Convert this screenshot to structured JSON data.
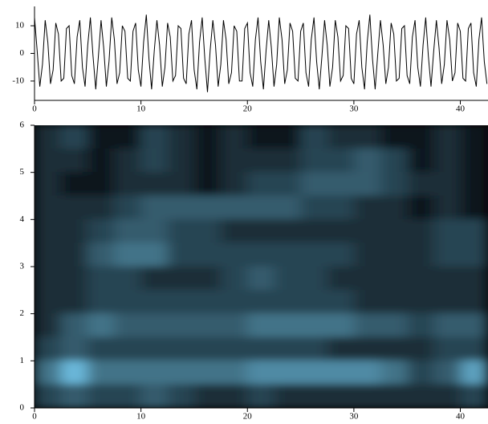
{
  "chart_data": [
    {
      "type": "line",
      "color": "#000000",
      "xlim": [
        0,
        42.6
      ],
      "ylim": [
        -17,
        17
      ],
      "xticks": [
        0,
        10,
        20,
        30,
        40
      ],
      "yticks": [
        10,
        0,
        -10
      ],
      "x": [
        0,
        0.25,
        0.5,
        0.75,
        1,
        1.25,
        1.5,
        1.75,
        2,
        2.25,
        2.5,
        2.75,
        3,
        3.25,
        3.5,
        3.75,
        4,
        4.25,
        4.5,
        4.75,
        5,
        5.25,
        5.5,
        5.75,
        6,
        6.25,
        6.5,
        6.75,
        7,
        7.25,
        7.5,
        7.75,
        8,
        8.25,
        8.5,
        8.75,
        9,
        9.25,
        9.5,
        9.75,
        10,
        10.25,
        10.5,
        10.75,
        11,
        11.25,
        11.5,
        11.75,
        12,
        12.25,
        12.5,
        12.75,
        13,
        13.25,
        13.5,
        13.75,
        14,
        14.25,
        14.5,
        14.75,
        15,
        15.25,
        15.5,
        15.75,
        16,
        16.25,
        16.5,
        16.75,
        17,
        17.25,
        17.5,
        17.75,
        18,
        18.25,
        18.5,
        18.75,
        19,
        19.25,
        19.5,
        19.75,
        20,
        20.25,
        20.5,
        20.75,
        21,
        21.25,
        21.5,
        21.75,
        22,
        22.25,
        22.5,
        22.75,
        23,
        23.25,
        23.5,
        23.75,
        24,
        24.25,
        24.5,
        24.75,
        25,
        25.25,
        25.5,
        25.75,
        26,
        26.25,
        26.5,
        26.75,
        27,
        27.25,
        27.5,
        27.75,
        28,
        28.25,
        28.5,
        28.75,
        29,
        29.25,
        29.5,
        29.75,
        30,
        30.25,
        30.5,
        30.75,
        31,
        31.25,
        31.5,
        31.75,
        32,
        32.25,
        32.5,
        32.75,
        33,
        33.25,
        33.5,
        33.75,
        34,
        34.25,
        34.5,
        34.75,
        35,
        35.25,
        35.5,
        35.75,
        36,
        36.25,
        36.5,
        36.75,
        37,
        37.25,
        37.5,
        37.75,
        38,
        38.25,
        38.5,
        38.75,
        39,
        39.25,
        39.5,
        39.75,
        40,
        40.25,
        40.5,
        40.75,
        41,
        41.25,
        41.5,
        41.75,
        42,
        42.25,
        42.5
      ],
      "values": [
        13,
        1,
        -12,
        -4,
        12,
        4,
        -11,
        -6,
        11,
        7,
        -10,
        -9,
        9,
        10,
        -8,
        -11,
        6,
        12,
        -5,
        -12,
        3,
        13,
        -1,
        -13,
        -1,
        12,
        2,
        -12,
        -3,
        13,
        5,
        -11,
        -7,
        10,
        8,
        -9,
        -10,
        8,
        11,
        -6,
        -12,
        4,
        14,
        -2,
        -13,
        1,
        12,
        3,
        -12,
        -5,
        11,
        6,
        -10,
        -8,
        10,
        9,
        -9,
        -11,
        7,
        12,
        -6,
        -13,
        4,
        13,
        -2,
        -14,
        1,
        12,
        3,
        -12,
        -4,
        12,
        5,
        -11,
        -7,
        10,
        8,
        -10,
        -10,
        9,
        11,
        -7,
        -12,
        5,
        13,
        -3,
        -13,
        1,
        12,
        2,
        -12,
        -4,
        13,
        5,
        -11,
        -6,
        11,
        8,
        -9,
        -10,
        8,
        11,
        -7,
        -12,
        5,
        13,
        -3,
        -13,
        -1,
        12,
        3,
        -12,
        -5,
        12,
        6,
        -10,
        -8,
        10,
        9,
        -9,
        -11,
        7,
        12,
        -5,
        -13,
        4,
        14,
        -2,
        -13,
        0,
        12,
        3,
        -11,
        -5,
        11,
        7,
        -10,
        -9,
        9,
        10,
        -8,
        -11,
        6,
        12,
        -5,
        -12,
        3,
        13,
        -1,
        -12,
        1,
        12,
        2,
        -11,
        -4,
        12,
        5,
        -10,
        -7,
        11,
        8,
        -9,
        -10,
        9,
        11,
        -7,
        -12,
        5,
        13,
        -3,
        -11
      ]
    },
    {
      "type": "heatmap",
      "colormap": [
        "#000000",
        "#6ab8da"
      ],
      "xlim": [
        0,
        42.6
      ],
      "ylim": [
        0,
        6
      ],
      "xticks": [
        0,
        10,
        20,
        30,
        40
      ],
      "yticks": [
        0,
        1,
        2,
        3,
        4,
        5,
        6
      ],
      "z": [
        [
          2,
          3,
          1,
          1,
          3,
          2,
          1,
          2,
          1,
          1,
          3,
          2,
          2,
          1,
          1,
          2,
          1
        ],
        [
          2,
          2,
          1,
          2,
          3,
          2,
          1,
          2,
          2,
          2,
          3,
          3,
          4,
          3,
          1,
          2,
          1
        ],
        [
          2,
          1,
          1,
          2,
          2,
          2,
          1,
          2,
          3,
          3,
          4,
          4,
          4,
          3,
          2,
          2,
          1
        ],
        [
          2,
          2,
          2,
          3,
          4,
          4,
          4,
          4,
          4,
          4,
          3,
          3,
          2,
          2,
          1,
          2,
          1
        ],
        [
          2,
          2,
          3,
          4,
          4,
          3,
          3,
          2,
          2,
          2,
          2,
          2,
          2,
          2,
          2,
          3,
          3
        ],
        [
          2,
          2,
          4,
          5,
          5,
          3,
          3,
          3,
          3,
          3,
          3,
          3,
          2,
          2,
          2,
          3,
          3
        ],
        [
          2,
          2,
          3,
          3,
          2,
          2,
          2,
          3,
          4,
          3,
          3,
          2,
          2,
          2,
          2,
          2,
          2
        ],
        [
          2,
          2,
          3,
          3,
          3,
          3,
          3,
          3,
          3,
          3,
          3,
          3,
          2,
          2,
          2,
          2,
          2
        ],
        [
          2,
          4,
          5,
          4,
          4,
          4,
          4,
          4,
          5,
          5,
          5,
          5,
          4,
          4,
          3,
          4,
          4
        ],
        [
          3,
          4,
          3,
          3,
          3,
          3,
          3,
          3,
          3,
          3,
          3,
          2,
          2,
          2,
          2,
          3,
          3
        ],
        [
          5,
          8,
          5,
          5,
          5,
          5,
          5,
          5,
          6,
          6,
          6,
          6,
          6,
          5,
          3,
          4,
          7
        ],
        [
          3,
          4,
          3,
          3,
          4,
          3,
          2,
          2,
          3,
          2,
          2,
          2,
          2,
          2,
          2,
          2,
          3
        ]
      ]
    }
  ]
}
